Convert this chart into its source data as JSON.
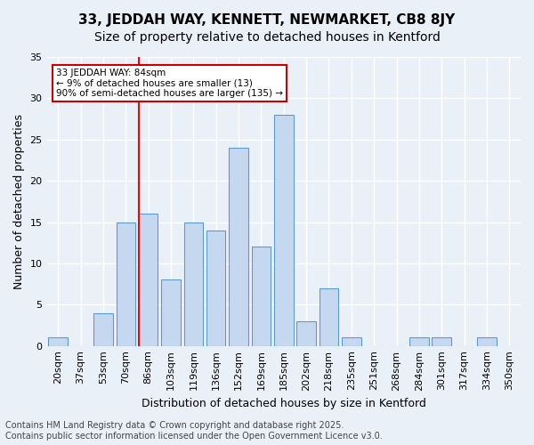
{
  "title1": "33, JEDDAH WAY, KENNETT, NEWMARKET, CB8 8JY",
  "title2": "Size of property relative to detached houses in Kentford",
  "xlabel": "Distribution of detached houses by size in Kentford",
  "ylabel": "Number of detached properties",
  "bins": [
    "20sqm",
    "37sqm",
    "53sqm",
    "70sqm",
    "86sqm",
    "103sqm",
    "119sqm",
    "136sqm",
    "152sqm",
    "169sqm",
    "185sqm",
    "202sqm",
    "218sqm",
    "235sqm",
    "251sqm",
    "268sqm",
    "284sqm",
    "301sqm",
    "317sqm",
    "334sqm",
    "350sqm"
  ],
  "values": [
    1,
    0,
    4,
    15,
    16,
    8,
    15,
    14,
    24,
    12,
    28,
    3,
    7,
    1,
    0,
    0,
    1,
    1,
    0,
    1,
    0
  ],
  "bar_color": "#c5d8f0",
  "bar_edge_color": "#5b9bd5",
  "red_line_index": 4,
  "ylim": [
    0,
    35
  ],
  "yticks": [
    0,
    5,
    10,
    15,
    20,
    25,
    30,
    35
  ],
  "annotation_title": "33 JEDDAH WAY: 84sqm",
  "annotation_line1": "← 9% of detached houses are smaller (13)",
  "annotation_line2": "90% of semi-detached houses are larger (135) →",
  "annotation_box_color": "#ffffff",
  "annotation_box_edge": "#cc0000",
  "background_color": "#eaf0f8",
  "grid_color": "#ffffff",
  "footer1": "Contains HM Land Registry data © Crown copyright and database right 2025.",
  "footer2": "Contains public sector information licensed under the Open Government Licence v3.0.",
  "title1_fontsize": 11,
  "title2_fontsize": 10,
  "xlabel_fontsize": 9,
  "ylabel_fontsize": 9,
  "tick_fontsize": 8,
  "footer_fontsize": 7
}
